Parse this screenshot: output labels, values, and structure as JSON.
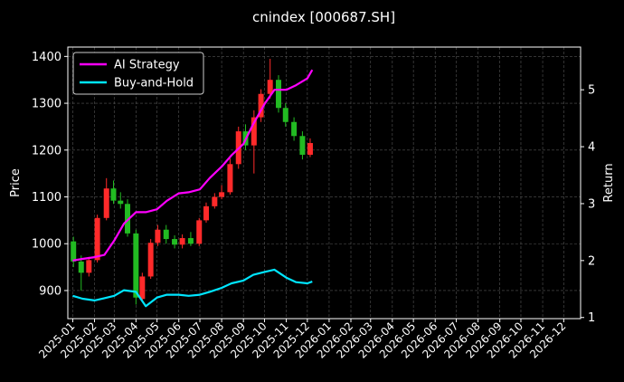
{
  "chart_data": {
    "type": "line",
    "title": "cnindex [000687.SH]",
    "ylabel_left": "Price",
    "ylabel_right": "Return",
    "xlabel": "",
    "x_tick_labels": [
      "2025-01",
      "2025-02",
      "2025-03",
      "2025-04",
      "2025-05",
      "2025-06",
      "2025-07",
      "2025-08",
      "2025-09",
      "2025-10",
      "2025-11",
      "2025-12",
      "2026-01",
      "2026-02",
      "2026-03",
      "2026-04",
      "2026-05",
      "2026-06",
      "2026-07",
      "2026-08",
      "2026-09",
      "2026-10",
      "2026-11",
      "2026-12"
    ],
    "y_left_ticks": [
      900,
      1000,
      1100,
      1200,
      1300,
      1400
    ],
    "y_right_ticks": [
      1,
      2,
      3,
      4,
      5
    ],
    "ylim_left": [
      840,
      1420
    ],
    "ylim_right": [
      0.98,
      5.75
    ],
    "xlim": [
      "2024-12-25",
      "2026-12-25"
    ],
    "grid": true,
    "legend": {
      "placement": "top-left",
      "entries": [
        "AI Strategy",
        "Buy-and-Hold"
      ]
    },
    "colors": {
      "up": "#ff2a2a",
      "down": "#22bb22",
      "ai": "#ff00ff",
      "bh": "#00e5ff"
    },
    "price_candles": {
      "dates": [
        "2025-01-02",
        "2025-01-13",
        "2025-01-24",
        "2025-02-05",
        "2025-02-18",
        "2025-02-28",
        "2025-03-10",
        "2025-03-20",
        "2025-04-01",
        "2025-04-10",
        "2025-04-22",
        "2025-05-02",
        "2025-05-14",
        "2025-05-26",
        "2025-06-06",
        "2025-06-18",
        "2025-06-30",
        "2025-07-10",
        "2025-07-22",
        "2025-08-01",
        "2025-08-13",
        "2025-08-25",
        "2025-09-04",
        "2025-09-16",
        "2025-09-26",
        "2025-10-09",
        "2025-10-21",
        "2025-10-31",
        "2025-11-12",
        "2025-11-24",
        "2025-12-05"
      ],
      "open": [
        1005,
        962,
        938,
        965,
        1055,
        1118,
        1092,
        1085,
        1022,
        882,
        930,
        1002,
        1030,
        1010,
        998,
        1012,
        1000,
        1050,
        1080,
        1100,
        1110,
        1170,
        1240,
        1210,
        1270,
        1320,
        1350,
        1290,
        1260,
        1230,
        1190
      ],
      "close": [
        962,
        938,
        965,
        1055,
        1118,
        1092,
        1085,
        1022,
        885,
        930,
        1002,
        1030,
        1010,
        998,
        1012,
        1000,
        1050,
        1080,
        1100,
        1110,
        1170,
        1240,
        1210,
        1270,
        1320,
        1350,
        1290,
        1260,
        1230,
        1190,
        1215
      ],
      "high": [
        1015,
        975,
        972,
        1062,
        1140,
        1135,
        1110,
        1095,
        1030,
        938,
        1010,
        1040,
        1040,
        1018,
        1020,
        1025,
        1055,
        1088,
        1108,
        1125,
        1182,
        1250,
        1255,
        1285,
        1330,
        1395,
        1360,
        1300,
        1270,
        1240,
        1225
      ],
      "low": [
        950,
        900,
        930,
        960,
        1050,
        1085,
        1075,
        1015,
        870,
        875,
        925,
        995,
        1000,
        990,
        990,
        995,
        995,
        1045,
        1075,
        1095,
        1105,
        1160,
        1200,
        1150,
        1260,
        1310,
        1280,
        1250,
        1220,
        1180,
        1185
      ]
    },
    "series": [
      {
        "name": "AI Strategy",
        "dates": [
          "2025-01-01",
          "2025-01-15",
          "2025-02-01",
          "2025-02-15",
          "2025-03-01",
          "2025-03-15",
          "2025-04-01",
          "2025-04-15",
          "2025-05-01",
          "2025-05-15",
          "2025-06-01",
          "2025-06-15",
          "2025-07-01",
          "2025-07-15",
          "2025-08-01",
          "2025-08-15",
          "2025-09-01",
          "2025-09-15",
          "2025-10-01",
          "2025-10-15",
          "2025-11-01",
          "2025-11-15",
          "2025-12-01",
          "2025-12-08"
        ],
        "values": [
          2.0,
          2.03,
          2.06,
          2.1,
          2.35,
          2.65,
          2.85,
          2.85,
          2.9,
          3.05,
          3.18,
          3.2,
          3.25,
          3.45,
          3.65,
          3.85,
          4.05,
          4.4,
          4.75,
          5.0,
          5.0,
          5.08,
          5.2,
          5.35
        ]
      },
      {
        "name": "Buy-and-Hold",
        "dates": [
          "2025-01-01",
          "2025-01-15",
          "2025-02-01",
          "2025-02-15",
          "2025-03-01",
          "2025-03-15",
          "2025-04-01",
          "2025-04-15",
          "2025-05-01",
          "2025-05-15",
          "2025-06-01",
          "2025-06-15",
          "2025-07-01",
          "2025-07-15",
          "2025-08-01",
          "2025-08-15",
          "2025-09-01",
          "2025-09-15",
          "2025-10-01",
          "2025-10-15",
          "2025-11-01",
          "2025-11-15",
          "2025-12-01",
          "2025-12-08"
        ],
        "values": [
          1.38,
          1.33,
          1.3,
          1.34,
          1.38,
          1.48,
          1.45,
          1.2,
          1.35,
          1.4,
          1.4,
          1.38,
          1.4,
          1.45,
          1.52,
          1.6,
          1.65,
          1.75,
          1.8,
          1.84,
          1.7,
          1.62,
          1.6,
          1.63
        ]
      }
    ]
  }
}
